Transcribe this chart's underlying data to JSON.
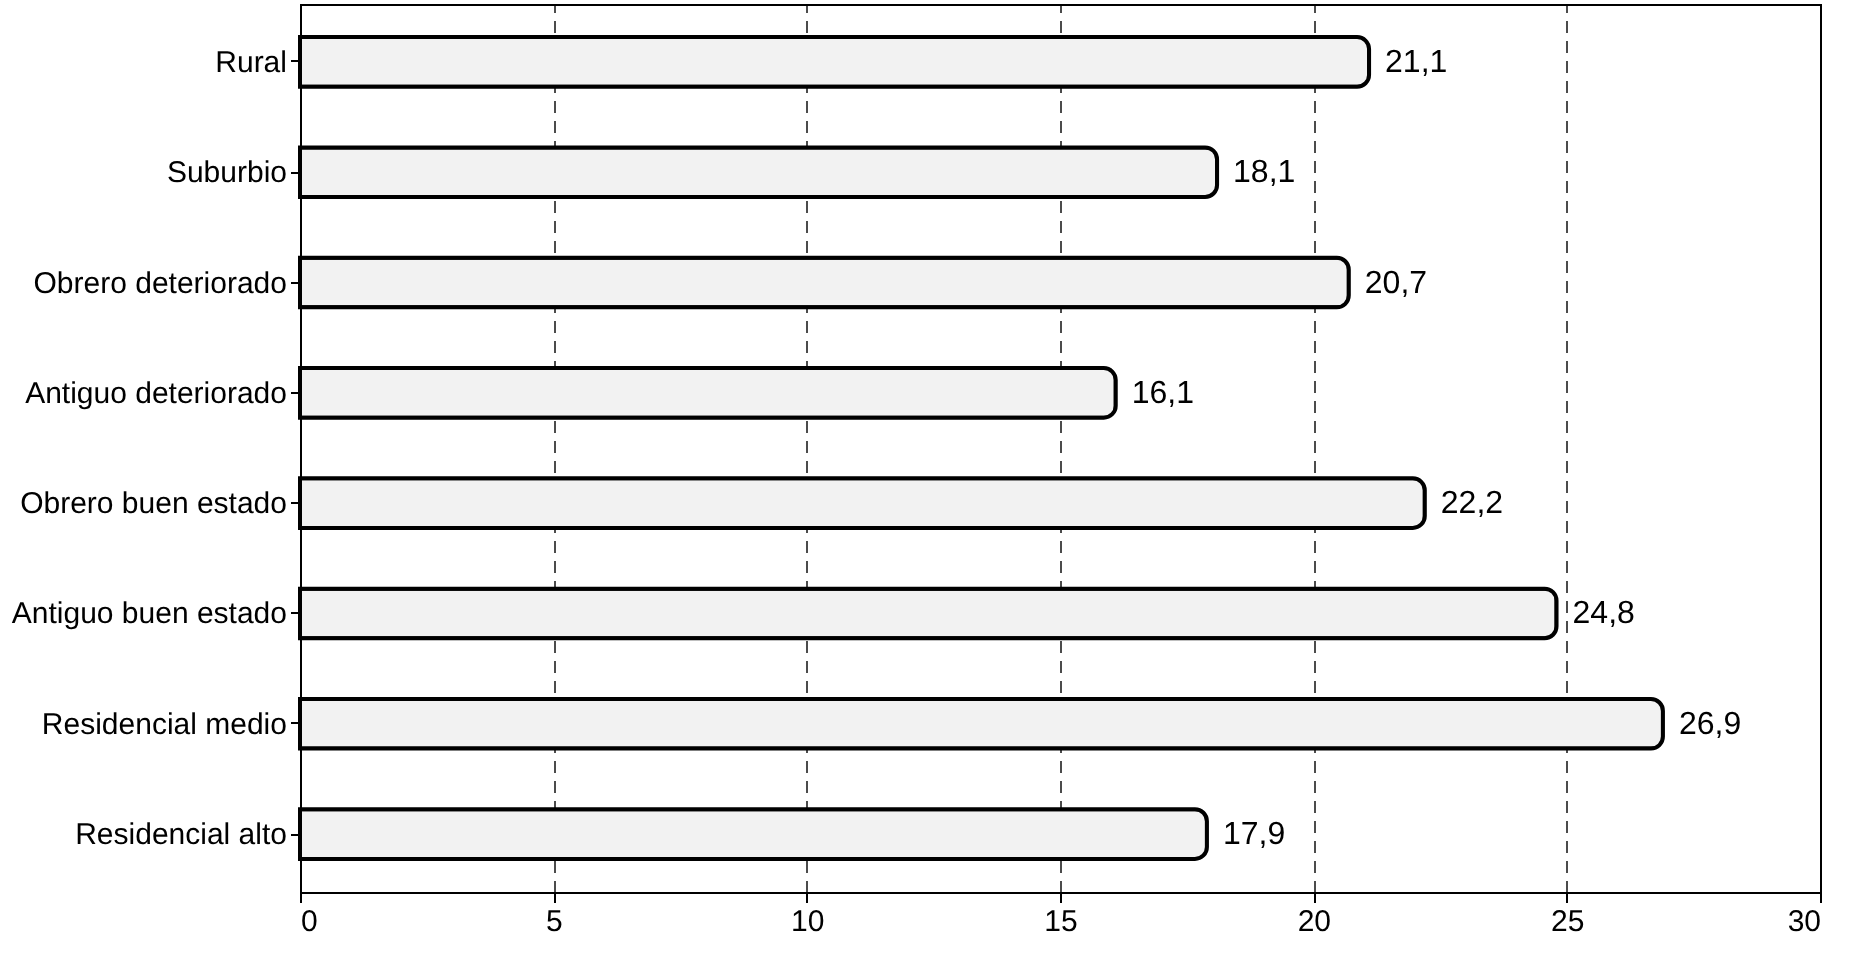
{
  "chart_data": {
    "type": "bar",
    "orientation": "horizontal",
    "categories": [
      "Rural",
      "Suburbio",
      "Obrero deteriorado",
      "Antiguo deteriorado",
      "Obrero buen estado",
      "Antiguo buen estado",
      "Residencial medio",
      "Residencial alto"
    ],
    "values": [
      21.1,
      18.1,
      20.7,
      16.1,
      22.2,
      24.8,
      26.9,
      17.9
    ],
    "value_labels": [
      "21,1",
      "18,1",
      "20,7",
      "16,1",
      "22,2",
      "24,8",
      "26,9",
      "17,9"
    ],
    "color": "#f2f2f2",
    "xlim": [
      0,
      30
    ],
    "xticks": [
      0,
      5,
      10,
      15,
      20,
      25,
      30
    ],
    "grid": "x"
  }
}
